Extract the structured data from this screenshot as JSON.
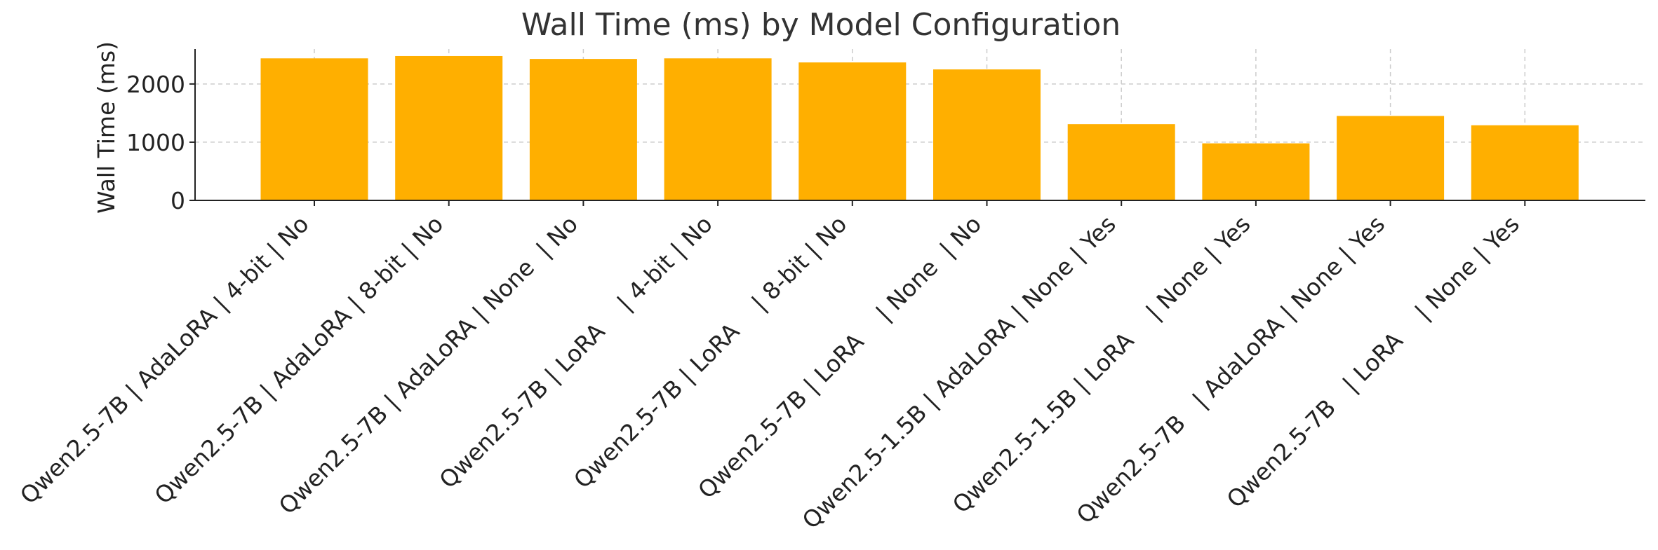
{
  "chart_data": {
    "type": "bar",
    "title": "Wall Time (ms) by Model Configuration",
    "xlabel": "",
    "ylabel": "Wall Time (ms)",
    "ylim": [
      0,
      2600
    ],
    "yticks": [
      0,
      1000,
      2000
    ],
    "grid": true,
    "legend": "none",
    "bar_color": "#FFAF00",
    "categories": [
      "Qwen2.5-7B | AdaLoRA | 4-bit | No",
      "Qwen2.5-7B | AdaLoRA | 8-bit | No",
      "Qwen2.5-7B | AdaLoRA | None  | No",
      "Qwen2.5-7B | LoRA    | 4-bit | No",
      "Qwen2.5-7B | LoRA    | 8-bit | No",
      "Qwen2.5-7B | LoRA    | None  | No",
      "Qwen2.5-1.5B | AdaLoRA | None | Yes",
      "Qwen2.5-1.5B | LoRA    | None | Yes",
      "Qwen2.5-7B   | AdaLoRA | None | Yes",
      "Qwen2.5-7B   | LoRA    | None | Yes"
    ],
    "values": [
      2440,
      2480,
      2430,
      2440,
      2370,
      2250,
      1310,
      980,
      1450,
      1290
    ]
  }
}
